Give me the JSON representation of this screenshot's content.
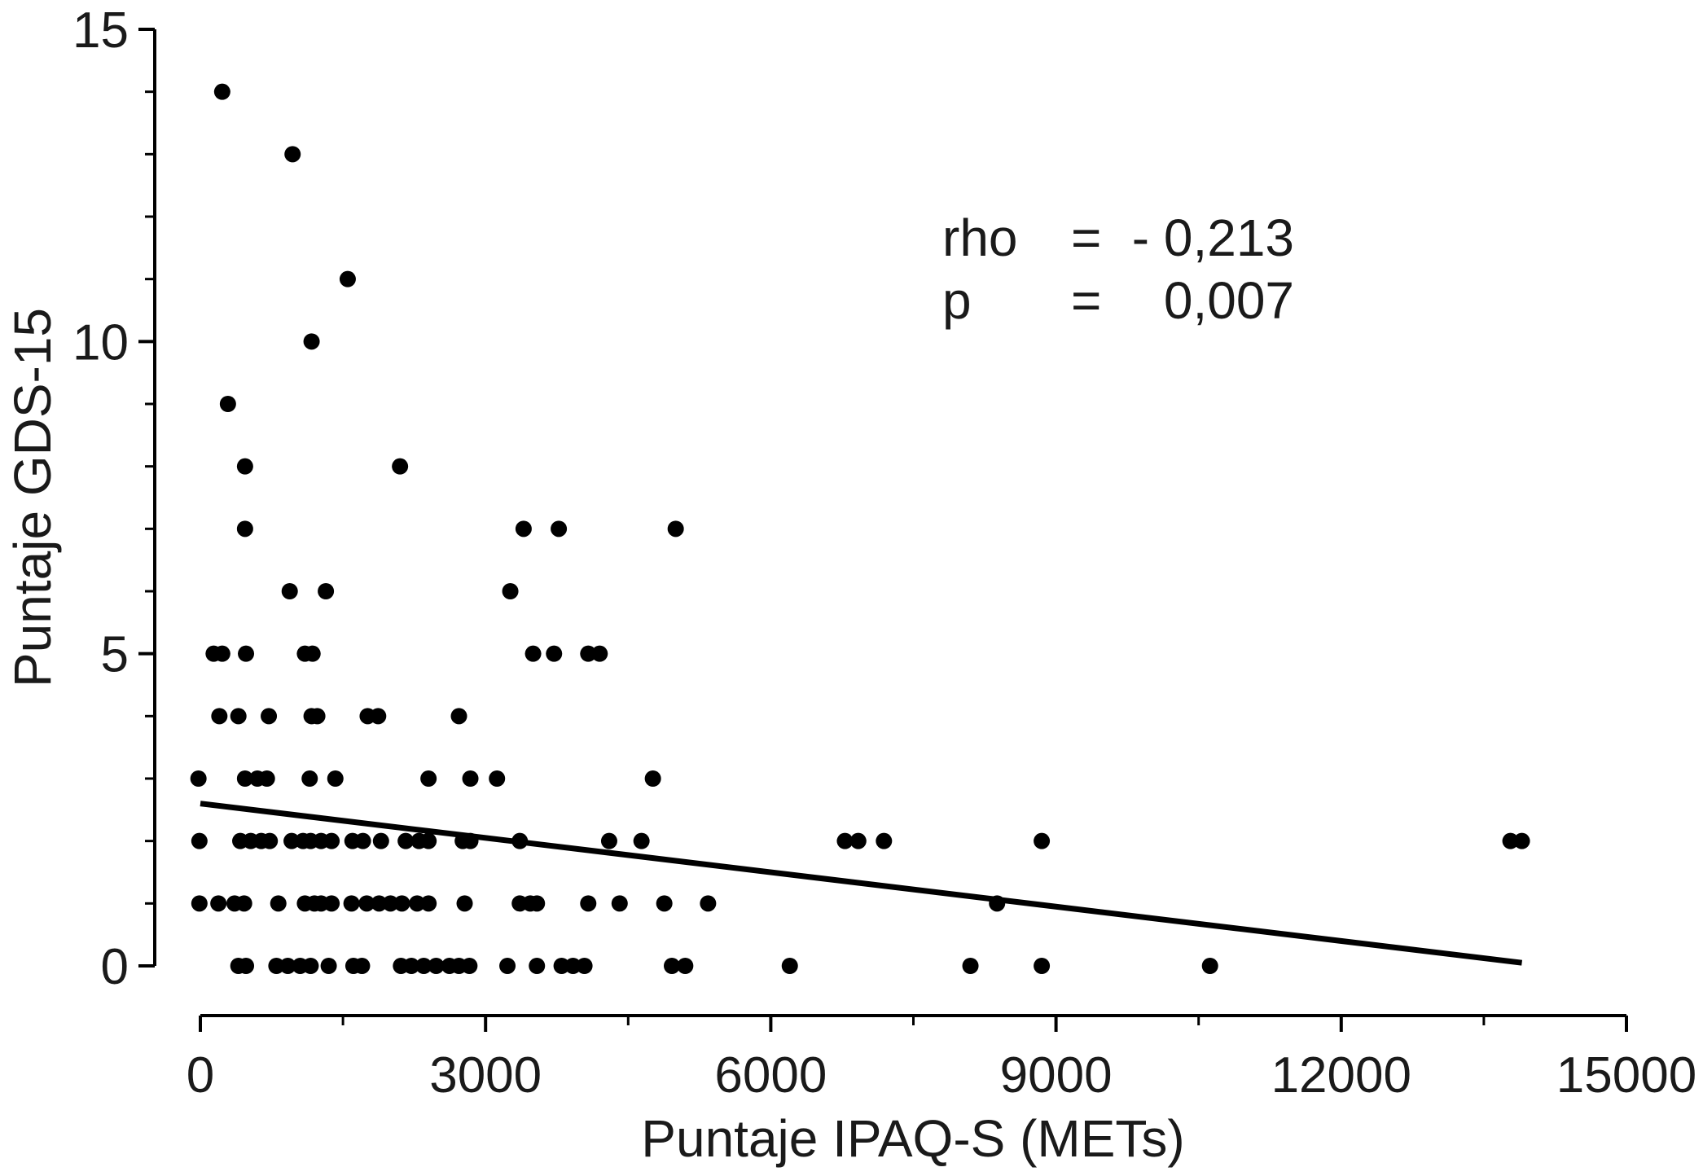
{
  "chart_data": {
    "type": "scatter",
    "title": "",
    "xlabel": "Puntaje IPAQ-S (METs)",
    "ylabel": "Puntaje GDS-15",
    "xlim": [
      0,
      15000
    ],
    "ylim": [
      0,
      15
    ],
    "x_ticks": [
      "0",
      "3000",
      "6000",
      "9000",
      "12000",
      "15000"
    ],
    "y_ticks": [
      "0",
      "5",
      "10",
      "15"
    ],
    "annotation": {
      "rho_label": "rho",
      "rho_eq": "=",
      "rho_value": "- 0,213",
      "p_label": "p",
      "p_eq": "=",
      "p_value": "0,007"
    },
    "regression_line": {
      "x": [
        0,
        13900
      ],
      "y": [
        2.6,
        0.05
      ]
    },
    "points": [
      {
        "x": 230,
        "y": 14
      },
      {
        "x": 970,
        "y": 13
      },
      {
        "x": 1550,
        "y": 11
      },
      {
        "x": 1170,
        "y": 10
      },
      {
        "x": 290,
        "y": 9
      },
      {
        "x": 470,
        "y": 8
      },
      {
        "x": 2100,
        "y": 8
      },
      {
        "x": 470,
        "y": 7
      },
      {
        "x": 3400,
        "y": 7
      },
      {
        "x": 3770,
        "y": 7
      },
      {
        "x": 5000,
        "y": 7
      },
      {
        "x": 940,
        "y": 6
      },
      {
        "x": 1320,
        "y": 6
      },
      {
        "x": 3260,
        "y": 6
      },
      {
        "x": 140,
        "y": 5
      },
      {
        "x": 230,
        "y": 5
      },
      {
        "x": 480,
        "y": 5
      },
      {
        "x": 1100,
        "y": 5
      },
      {
        "x": 1180,
        "y": 5
      },
      {
        "x": 3500,
        "y": 5
      },
      {
        "x": 3720,
        "y": 5
      },
      {
        "x": 4080,
        "y": 5
      },
      {
        "x": 4200,
        "y": 5
      },
      {
        "x": 200,
        "y": 4
      },
      {
        "x": 400,
        "y": 4
      },
      {
        "x": 720,
        "y": 4
      },
      {
        "x": 1170,
        "y": 4
      },
      {
        "x": 1230,
        "y": 4
      },
      {
        "x": 1760,
        "y": 4
      },
      {
        "x": 1870,
        "y": 4
      },
      {
        "x": 2720,
        "y": 4
      },
      {
        "x": -20,
        "y": 3
      },
      {
        "x": 470,
        "y": 3
      },
      {
        "x": 600,
        "y": 3
      },
      {
        "x": 700,
        "y": 3
      },
      {
        "x": 1150,
        "y": 3
      },
      {
        "x": 1420,
        "y": 3
      },
      {
        "x": 2400,
        "y": 3
      },
      {
        "x": 2840,
        "y": 3
      },
      {
        "x": 3120,
        "y": 3
      },
      {
        "x": 4760,
        "y": 3
      },
      {
        "x": -10,
        "y": 2
      },
      {
        "x": 420,
        "y": 2
      },
      {
        "x": 530,
        "y": 2
      },
      {
        "x": 640,
        "y": 2
      },
      {
        "x": 730,
        "y": 2
      },
      {
        "x": 960,
        "y": 2
      },
      {
        "x": 1080,
        "y": 2
      },
      {
        "x": 1160,
        "y": 2
      },
      {
        "x": 1270,
        "y": 2
      },
      {
        "x": 1380,
        "y": 2
      },
      {
        "x": 1600,
        "y": 2
      },
      {
        "x": 1710,
        "y": 2
      },
      {
        "x": 1900,
        "y": 2
      },
      {
        "x": 2160,
        "y": 2
      },
      {
        "x": 2300,
        "y": 2
      },
      {
        "x": 2400,
        "y": 2
      },
      {
        "x": 2760,
        "y": 2
      },
      {
        "x": 2840,
        "y": 2
      },
      {
        "x": 3360,
        "y": 2
      },
      {
        "x": 4300,
        "y": 2
      },
      {
        "x": 4640,
        "y": 2
      },
      {
        "x": 6780,
        "y": 2
      },
      {
        "x": 6920,
        "y": 2
      },
      {
        "x": 7190,
        "y": 2
      },
      {
        "x": 8850,
        "y": 2
      },
      {
        "x": 13780,
        "y": 2
      },
      {
        "x": 13900,
        "y": 2
      },
      {
        "x": -10,
        "y": 1
      },
      {
        "x": 190,
        "y": 1
      },
      {
        "x": 360,
        "y": 1
      },
      {
        "x": 460,
        "y": 1
      },
      {
        "x": 820,
        "y": 1
      },
      {
        "x": 1100,
        "y": 1
      },
      {
        "x": 1200,
        "y": 1
      },
      {
        "x": 1270,
        "y": 1
      },
      {
        "x": 1380,
        "y": 1
      },
      {
        "x": 1590,
        "y": 1
      },
      {
        "x": 1750,
        "y": 1
      },
      {
        "x": 1880,
        "y": 1
      },
      {
        "x": 2000,
        "y": 1
      },
      {
        "x": 2120,
        "y": 1
      },
      {
        "x": 2280,
        "y": 1
      },
      {
        "x": 2400,
        "y": 1
      },
      {
        "x": 2780,
        "y": 1
      },
      {
        "x": 3360,
        "y": 1
      },
      {
        "x": 3470,
        "y": 1
      },
      {
        "x": 3540,
        "y": 1
      },
      {
        "x": 4080,
        "y": 1
      },
      {
        "x": 4410,
        "y": 1
      },
      {
        "x": 4880,
        "y": 1
      },
      {
        "x": 5340,
        "y": 1
      },
      {
        "x": 8380,
        "y": 1
      },
      {
        "x": 400,
        "y": 0
      },
      {
        "x": 480,
        "y": 0
      },
      {
        "x": 800,
        "y": 0
      },
      {
        "x": 920,
        "y": 0
      },
      {
        "x": 1050,
        "y": 0
      },
      {
        "x": 1160,
        "y": 0
      },
      {
        "x": 1350,
        "y": 0
      },
      {
        "x": 1610,
        "y": 0
      },
      {
        "x": 1700,
        "y": 0
      },
      {
        "x": 2110,
        "y": 0
      },
      {
        "x": 2220,
        "y": 0
      },
      {
        "x": 2350,
        "y": 0
      },
      {
        "x": 2480,
        "y": 0
      },
      {
        "x": 2620,
        "y": 0
      },
      {
        "x": 2720,
        "y": 0
      },
      {
        "x": 2830,
        "y": 0
      },
      {
        "x": 3230,
        "y": 0
      },
      {
        "x": 3540,
        "y": 0
      },
      {
        "x": 3800,
        "y": 0
      },
      {
        "x": 3920,
        "y": 0
      },
      {
        "x": 4040,
        "y": 0
      },
      {
        "x": 4960,
        "y": 0
      },
      {
        "x": 5100,
        "y": 0
      },
      {
        "x": 6200,
        "y": 0
      },
      {
        "x": 8100,
        "y": 0
      },
      {
        "x": 8850,
        "y": 0
      },
      {
        "x": 10620,
        "y": 0
      }
    ]
  }
}
